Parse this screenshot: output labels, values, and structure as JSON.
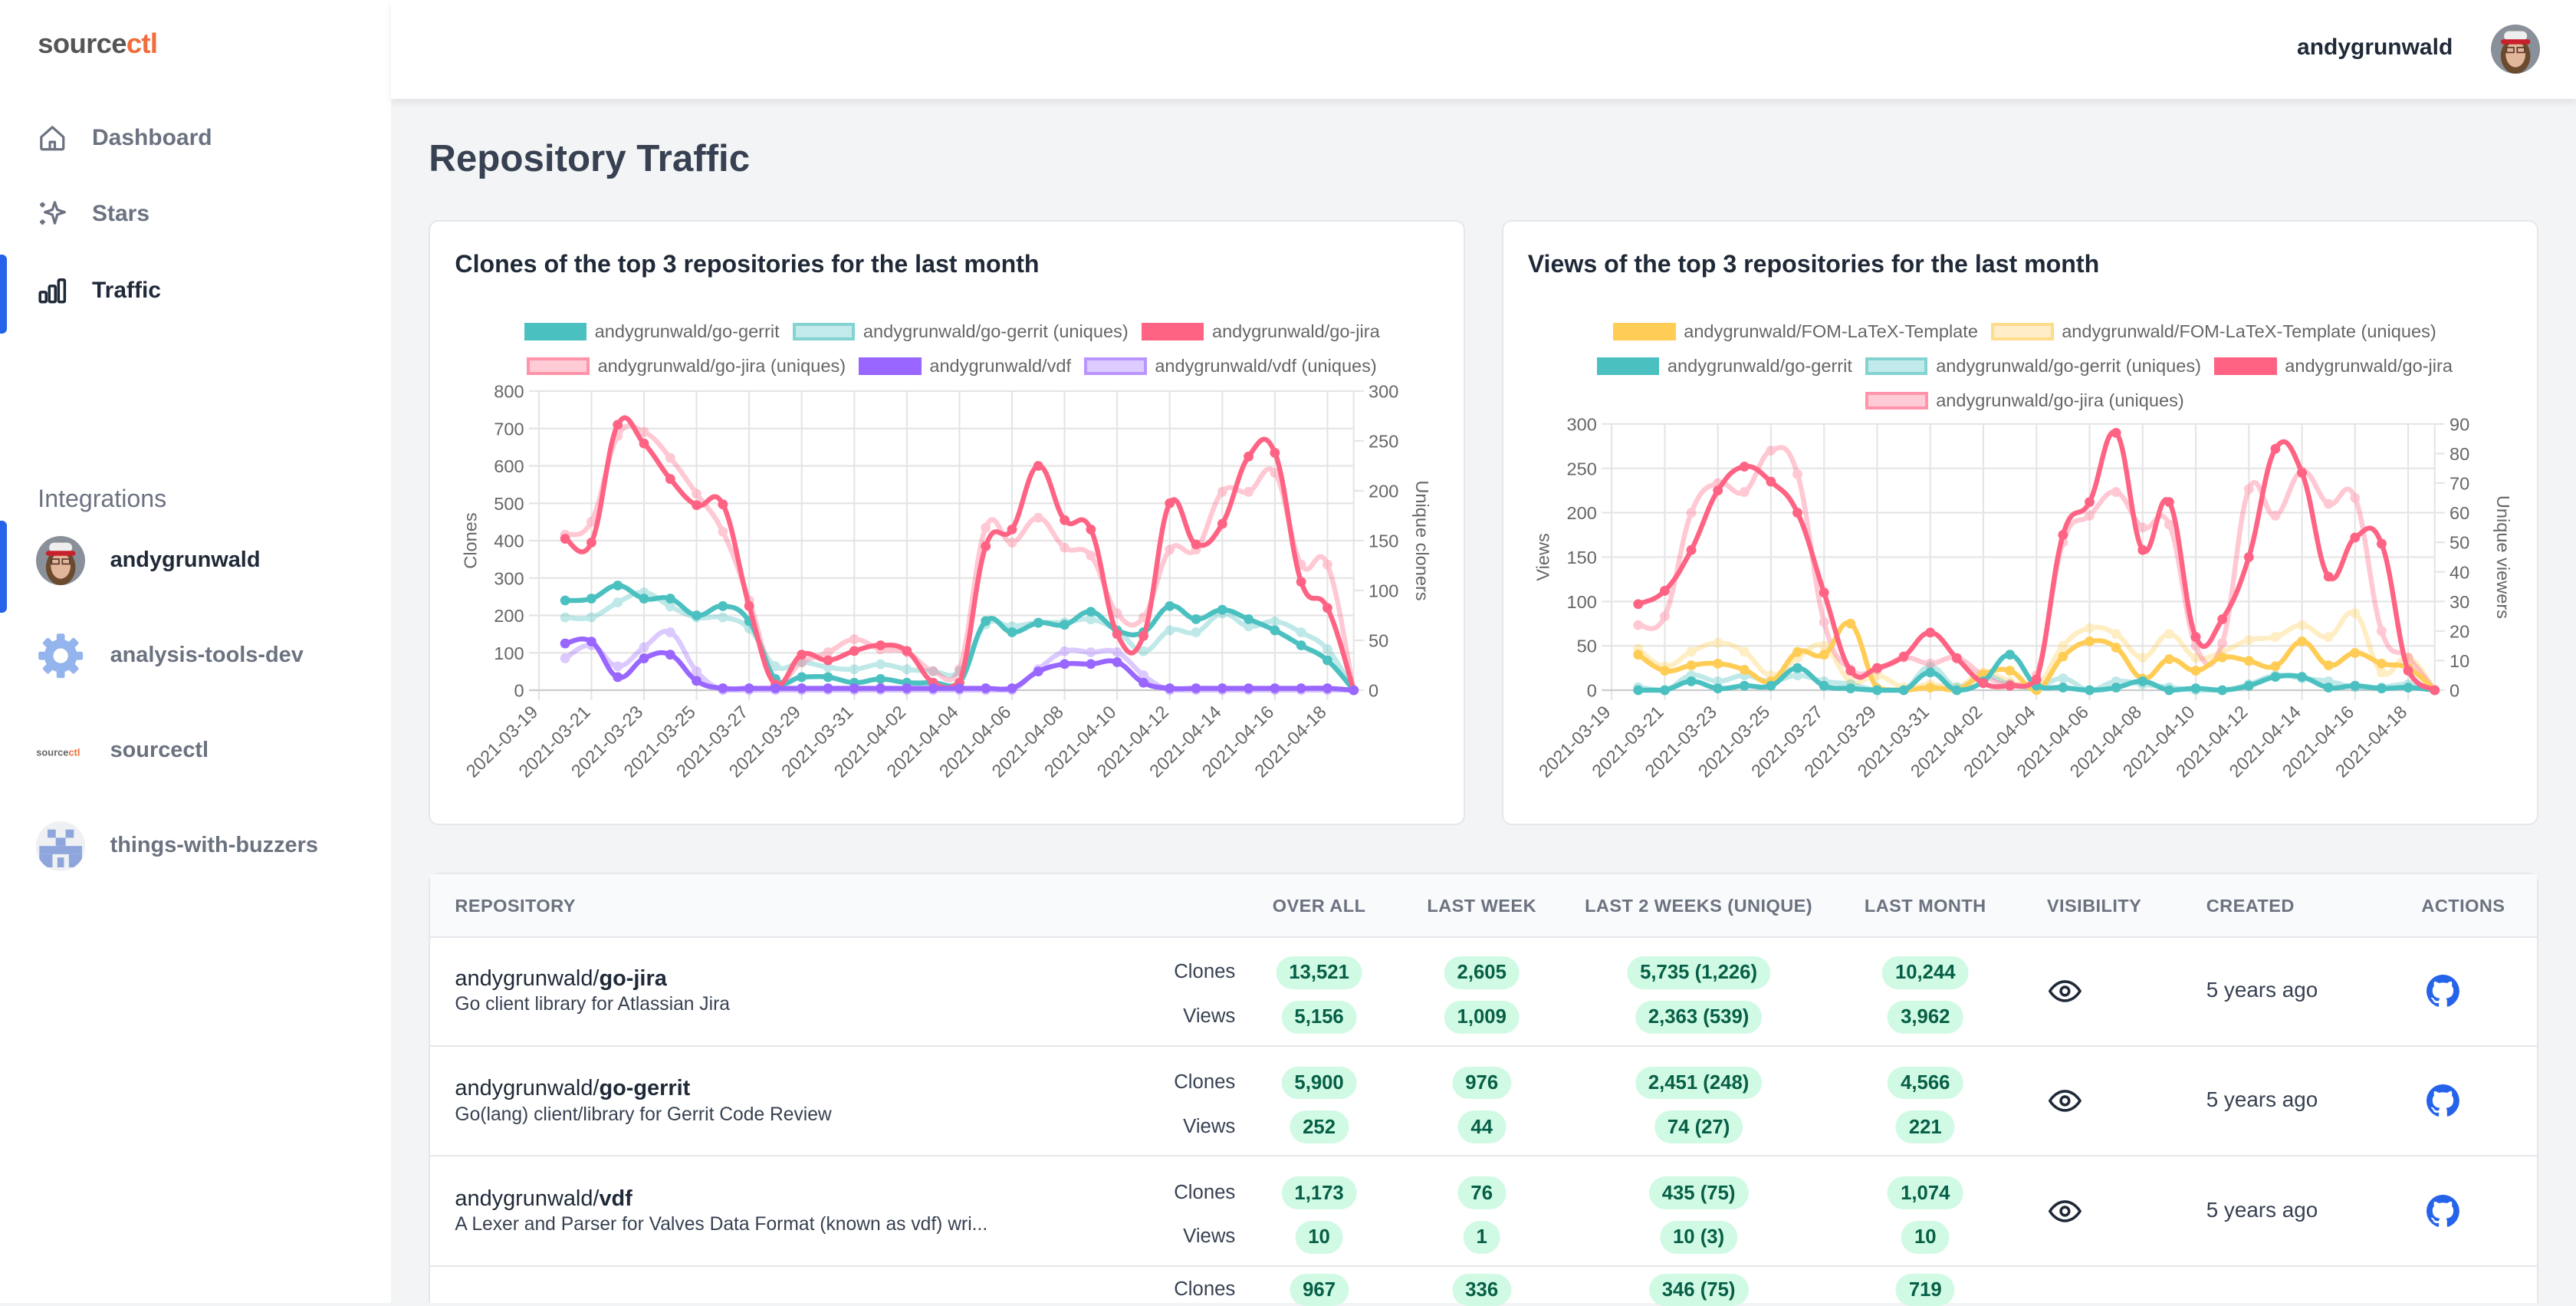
{
  "app": {
    "logo_main": "source",
    "logo_accent": "ctl",
    "accent_color": "#f26b3a",
    "active_color": "#2563eb"
  },
  "sidebar": {
    "nav": [
      {
        "label": "Dashboard",
        "icon": "home-icon"
      },
      {
        "label": "Stars",
        "icon": "sparkles-icon"
      },
      {
        "label": "Traffic",
        "icon": "bar-chart-icon",
        "active": true
      }
    ],
    "integrations_title": "Integrations",
    "integrations": [
      {
        "label": "andygrunwald",
        "icon": "user-avatar",
        "active": true
      },
      {
        "label": "analysis-tools-dev",
        "icon": "gear-icon"
      },
      {
        "label": "sourcectl",
        "icon": "sourcectl-logo"
      },
      {
        "label": "things-with-buzzers",
        "icon": "pixel-logo-icon"
      }
    ]
  },
  "topbar": {
    "username": "andygrunwald"
  },
  "page": {
    "title": "Repository Traffic"
  },
  "chart_data": [
    {
      "type": "line",
      "title": "Clones of the top 3 repositories for the last month",
      "ylabel": "Clones",
      "y2label": "Unique cloners",
      "ylim": [
        0,
        800
      ],
      "y2lim": [
        0,
        300
      ],
      "yticks": [
        0,
        100,
        200,
        300,
        400,
        500,
        600,
        700,
        800
      ],
      "y2ticks": [
        0,
        50,
        100,
        150,
        200,
        250,
        300
      ],
      "xtick_labels": [
        "2021-03-19",
        "2021-03-21",
        "2021-03-23",
        "2021-03-25",
        "2021-03-27",
        "2021-03-29",
        "2021-03-31",
        "2021-04-02",
        "2021-04-04",
        "2021-04-06",
        "2021-04-08",
        "2021-04-10",
        "2021-04-12",
        "2021-04-14",
        "2021-04-16",
        "2021-04-18"
      ],
      "xrange": [
        "2021-03-19",
        "2021-04-19"
      ],
      "x_start": "2021-03-20",
      "grid": true,
      "legend": "top",
      "series": [
        {
          "name": "andygrunwald/go-gerrit",
          "color": "#4bc0c0",
          "axis": "left",
          "uniques": false,
          "values": [
            240,
            245,
            280,
            245,
            245,
            200,
            225,
            185,
            30,
            35,
            35,
            20,
            30,
            20,
            20,
            20,
            185,
            155,
            180,
            175,
            210,
            160,
            155,
            225,
            190,
            215,
            190,
            160,
            120,
            80,
            0
          ]
        },
        {
          "name": "andygrunwald/go-gerrit (uniques)",
          "color": "#4bc0c0",
          "axis": "right",
          "uniques": true,
          "values": [
            73,
            73,
            88,
            98,
            84,
            73,
            73,
            62,
            24,
            28,
            23,
            21,
            26,
            21,
            19,
            19,
            66,
            64,
            68,
            68,
            71,
            60,
            39,
            60,
            58,
            77,
            64,
            69,
            58,
            41,
            0
          ]
        },
        {
          "name": "andygrunwald/go-jira",
          "color": "#ff6384",
          "axis": "left",
          "uniques": false,
          "values": [
            405,
            395,
            710,
            660,
            565,
            495,
            497,
            225,
            15,
            95,
            80,
            105,
            120,
            105,
            20,
            20,
            385,
            430,
            600,
            455,
            430,
            150,
            145,
            500,
            390,
            445,
            625,
            635,
            290,
            220,
            0
          ]
        },
        {
          "name": "andygrunwald/go-jira (uniques)",
          "color": "#ff6384",
          "axis": "right",
          "uniques": true,
          "values": [
            156,
            169,
            255,
            259,
            233,
            197,
            159,
            90,
            11,
            28,
            38,
            51,
            41,
            38,
            19,
            21,
            163,
            148,
            173,
            143,
            135,
            77,
            73,
            141,
            141,
            199,
            199,
            218,
            126,
            126,
            0
          ]
        },
        {
          "name": "andygrunwald/vdf",
          "color": "#9966ff",
          "axis": "left",
          "uniques": false,
          "values": [
            125,
            130,
            35,
            85,
            95,
            25,
            5,
            5,
            5,
            5,
            5,
            5,
            5,
            5,
            5,
            5,
            5,
            5,
            50,
            70,
            70,
            75,
            20,
            5,
            5,
            5,
            5,
            5,
            5,
            5,
            0
          ]
        },
        {
          "name": "andygrunwald/vdf (uniques)",
          "color": "#9966ff",
          "axis": "right",
          "uniques": true,
          "values": [
            32,
            45,
            24,
            43,
            58,
            19,
            0,
            0,
            0,
            0,
            0,
            0,
            0,
            0,
            0,
            0,
            0,
            0,
            21,
            39,
            38,
            38,
            15,
            0,
            0,
            0,
            0,
            0,
            0,
            0,
            0
          ]
        }
      ]
    },
    {
      "type": "line",
      "title": "Views of the top 3 repositories for the last month",
      "ylabel": "Views",
      "y2label": "Unique viewers",
      "ylim": [
        0,
        300
      ],
      "y2lim": [
        0,
        90
      ],
      "yticks": [
        0,
        50,
        100,
        150,
        200,
        250,
        300
      ],
      "y2ticks": [
        0,
        10,
        20,
        30,
        40,
        50,
        60,
        70,
        80,
        90
      ],
      "xtick_labels": [
        "2021-03-19",
        "2021-03-21",
        "2021-03-23",
        "2021-03-25",
        "2021-03-27",
        "2021-03-29",
        "2021-03-31",
        "2021-04-02",
        "2021-04-04",
        "2021-04-06",
        "2021-04-08",
        "2021-04-10",
        "2021-04-12",
        "2021-04-14",
        "2021-04-16",
        "2021-04-18"
      ],
      "xrange": [
        "2021-03-19",
        "2021-04-19"
      ],
      "x_start": "2021-03-20",
      "grid": true,
      "legend": "top",
      "series": [
        {
          "name": "andygrunwald/FOM-LaTeX-Template",
          "color": "#ffcd56",
          "axis": "left",
          "uniques": false,
          "values": [
            40,
            22,
            28,
            30,
            23,
            10,
            43,
            40,
            75,
            2,
            0,
            3,
            0,
            18,
            22,
            0,
            38,
            55,
            48,
            13,
            35,
            22,
            37,
            33,
            27,
            55,
            28,
            42,
            30,
            25,
            0
          ]
        },
        {
          "name": "andygrunwald/FOM-LaTeX-Template (uniques)",
          "color": "#ffcd56",
          "axis": "right",
          "uniques": true,
          "values": [
            14,
            8,
            13,
            16,
            13,
            5,
            11,
            15,
            3,
            5,
            1,
            2,
            1,
            6,
            3,
            1,
            15,
            21,
            19,
            11,
            19,
            11,
            13,
            17,
            18,
            22,
            18,
            26,
            6,
            11,
            0
          ]
        },
        {
          "name": "andygrunwald/go-gerrit",
          "color": "#4bc0c0",
          "axis": "left",
          "uniques": false,
          "values": [
            0,
            0,
            10,
            2,
            5,
            5,
            25,
            5,
            2,
            0,
            0,
            20,
            0,
            10,
            40,
            5,
            3,
            0,
            3,
            10,
            0,
            2,
            0,
            5,
            15,
            15,
            3,
            5,
            2,
            3,
            0
          ]
        },
        {
          "name": "andygrunwald/go-gerrit (uniques)",
          "color": "#4bc0c0",
          "axis": "right",
          "uniques": true,
          "values": [
            1,
            0,
            5,
            3,
            5,
            3,
            5,
            3,
            2,
            0,
            0,
            8,
            1,
            5,
            2,
            1,
            4,
            0,
            3,
            2,
            1,
            0,
            0,
            2,
            5,
            4,
            3,
            1,
            1,
            2,
            0
          ]
        },
        {
          "name": "andygrunwald/go-jira",
          "color": "#ff6384",
          "axis": "left",
          "uniques": false,
          "values": [
            97,
            112,
            158,
            225,
            252,
            235,
            200,
            110,
            22,
            25,
            38,
            65,
            36,
            8,
            5,
            12,
            175,
            212,
            290,
            158,
            212,
            60,
            80,
            150,
            272,
            245,
            128,
            172,
            165,
            22,
            0
          ]
        },
        {
          "name": "andygrunwald/go-jira (uniques)",
          "color": "#ff6384",
          "axis": "right",
          "uniques": true,
          "values": [
            22,
            25,
            60,
            70,
            67,
            81,
            73,
            23,
            7,
            7,
            11,
            9,
            11,
            5,
            2,
            5,
            50,
            59,
            67,
            55,
            56,
            15,
            16,
            68,
            59,
            74,
            63,
            65,
            20,
            11,
            0
          ]
        }
      ]
    }
  ],
  "table": {
    "headers": [
      "REPOSITORY",
      "OVER ALL",
      "LAST WEEK",
      "LAST 2 WEEKS (UNIQUE)",
      "LAST MONTH",
      "VISIBILITY",
      "CREATED",
      "ACTIONS"
    ],
    "clones_label": "Clones",
    "views_label": "Views",
    "rows": [
      {
        "owner": "andygrunwald/",
        "name": "go-jira",
        "description": "Go client library for Atlassian Jira",
        "clones": [
          "13,521",
          "2,605",
          "5,735 (1,226)",
          "10,244"
        ],
        "views": [
          "5,156",
          "1,009",
          "2,363 (539)",
          "3,962"
        ],
        "visibility": "eye-icon",
        "created": "5 years ago",
        "action": "github-icon"
      },
      {
        "owner": "andygrunwald/",
        "name": "go-gerrit",
        "description": "Go(lang) client/library for Gerrit Code Review",
        "clones": [
          "5,900",
          "976",
          "2,451 (248)",
          "4,566"
        ],
        "views": [
          "252",
          "44",
          "74 (27)",
          "221"
        ],
        "visibility": "eye-icon",
        "created": "5 years ago",
        "action": "github-icon"
      },
      {
        "owner": "andygrunwald/",
        "name": "vdf",
        "description": "A Lexer and Parser for Valves Data Format (known as vdf) wri...",
        "clones": [
          "1,173",
          "76",
          "435 (75)",
          "1,074"
        ],
        "views": [
          "10",
          "1",
          "10 (3)",
          "10"
        ],
        "visibility": "eye-icon",
        "created": "5 years ago",
        "action": "github-icon"
      },
      {
        "clones": [
          "967",
          "336",
          "346 (75)",
          "719"
        ]
      }
    ]
  }
}
